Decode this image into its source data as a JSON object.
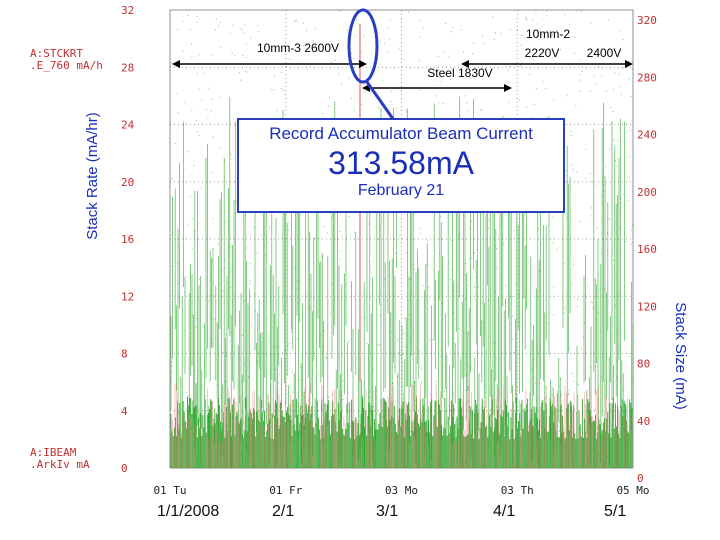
{
  "chart_data": {
    "type": "scatter",
    "title": "Record Accumulator Beam Current",
    "left_axis": {
      "label": "Stack Rate (mA/hr)",
      "channel_line1": "A:STCKRT",
      "channel_line2": ".E_760  mA/h",
      "ylim": [
        0,
        32
      ],
      "ticks": [
        "0",
        "4",
        "8",
        "12",
        "16",
        "20",
        "24",
        "28",
        "32"
      ]
    },
    "right_axis": {
      "label": "Stack Size (mA)",
      "ylim": [
        0,
        320
      ],
      "ticks": [
        "0",
        "40",
        "80",
        "120",
        "160",
        "200",
        "240",
        "280",
        "320"
      ]
    },
    "x_axis": {
      "ticks": [
        "01 Tu",
        "01 Fr",
        "03 Mo",
        "03 Th",
        "05 Mo"
      ],
      "dates": [
        "1/1/2008",
        "2/1",
        "3/1",
        "4/1",
        "5/1"
      ]
    },
    "bottom_channel": {
      "line1": "A:IBEAM",
      "line2": ".ArkIv  mA"
    },
    "series": [
      {
        "name": "Stack Rate (A:STCKRT)",
        "color": "#1aa01a",
        "axis": "left",
        "typical_range": [
          0,
          26
        ]
      },
      {
        "name": "Stack Size (A:IBEAM)",
        "color": "#e07070",
        "axis": "right",
        "typical_range": [
          0,
          60
        ]
      }
    ],
    "record": {
      "title": "Record Accumulator Beam Current",
      "value": "313.58mA",
      "date": "February 21"
    },
    "annotations": [
      {
        "label": "10mm-3 2600V"
      },
      {
        "label_line1": "10mm-2",
        "label_line2a": "2220V",
        "label_line2b": "2400V"
      },
      {
        "label": "Steel 1830V"
      }
    ],
    "colors": {
      "grid": "#9a9a9a",
      "axis_text": "#c03030",
      "green": "#1aa01a",
      "red": "#e07070",
      "blue": "#2a3ec4"
    }
  }
}
